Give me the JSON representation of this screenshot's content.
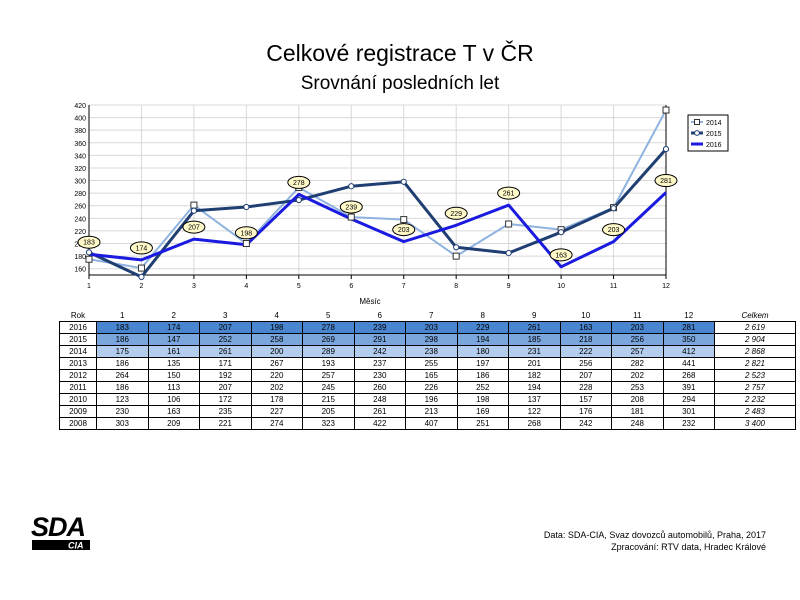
{
  "chart_data": {
    "type": "line",
    "title": "Celkové registrace T v ČR",
    "subtitle": "Srovnání posledních let",
    "xlabel": "Měsíc",
    "x": [
      1,
      2,
      3,
      4,
      5,
      6,
      7,
      8,
      9,
      10,
      11,
      12
    ],
    "ylim": [
      150,
      420
    ],
    "yticks": [
      160,
      180,
      200,
      220,
      240,
      260,
      280,
      300,
      320,
      340,
      360,
      380,
      400,
      420
    ],
    "grid": true,
    "legend_position": "top-right",
    "series": [
      {
        "name": "2014",
        "values": [
          175,
          161,
          261,
          200,
          289,
          242,
          238,
          180,
          231,
          222,
          257,
          412
        ],
        "color": "#8fb3e0",
        "marker": "square"
      },
      {
        "name": "2015",
        "values": [
          186,
          147,
          252,
          258,
          269,
          291,
          298,
          194,
          185,
          218,
          256,
          350
        ],
        "color": "#1f3e72",
        "marker": "circle"
      },
      {
        "name": "2016",
        "values": [
          183,
          174,
          207,
          198,
          278,
          239,
          203,
          229,
          261,
          163,
          203,
          281
        ],
        "color": "#1a1ae0",
        "marker": "label"
      }
    ]
  },
  "table": {
    "header_rok": "Rok",
    "months": [
      "1",
      "2",
      "3",
      "4",
      "5",
      "6",
      "7",
      "8",
      "9",
      "10",
      "11",
      "12"
    ],
    "header_total": "Celkem",
    "rows": [
      {
        "year": "2016",
        "values": [
          "183",
          "174",
          "207",
          "198",
          "278",
          "239",
          "203",
          "229",
          "261",
          "163",
          "203",
          "281"
        ],
        "total": "2 619",
        "bg": "#4a86cf"
      },
      {
        "year": "2015",
        "values": [
          "186",
          "147",
          "252",
          "258",
          "269",
          "291",
          "298",
          "194",
          "185",
          "218",
          "256",
          "350"
        ],
        "total": "2 904",
        "bg": "#7aa6dd"
      },
      {
        "year": "2014",
        "values": [
          "175",
          "161",
          "261",
          "200",
          "289",
          "242",
          "238",
          "180",
          "231",
          "222",
          "257",
          "412"
        ],
        "total": "2 868",
        "bg": "#b3cdee"
      },
      {
        "year": "2013",
        "values": [
          "186",
          "135",
          "171",
          "267",
          "193",
          "237",
          "255",
          "197",
          "201",
          "256",
          "282",
          "441"
        ],
        "total": "2 821",
        "bg": "#ffffff"
      },
      {
        "year": "2012",
        "values": [
          "264",
          "150",
          "192",
          "220",
          "257",
          "230",
          "165",
          "186",
          "182",
          "207",
          "202",
          "268"
        ],
        "total": "2 523",
        "bg": "#ffffff"
      },
      {
        "year": "2011",
        "values": [
          "186",
          "113",
          "207",
          "202",
          "245",
          "260",
          "226",
          "252",
          "194",
          "228",
          "253",
          "391"
        ],
        "total": "2 757",
        "bg": "#ffffff"
      },
      {
        "year": "2010",
        "values": [
          "123",
          "106",
          "172",
          "178",
          "215",
          "248",
          "196",
          "198",
          "137",
          "157",
          "208",
          "294"
        ],
        "total": "2 232",
        "bg": "#ffffff"
      },
      {
        "year": "2009",
        "values": [
          "230",
          "163",
          "235",
          "227",
          "205",
          "261",
          "213",
          "169",
          "122",
          "176",
          "181",
          "301"
        ],
        "total": "2 483",
        "bg": "#ffffff"
      },
      {
        "year": "2008",
        "values": [
          "303",
          "209",
          "221",
          "274",
          "323",
          "422",
          "407",
          "251",
          "268",
          "242",
          "248",
          "232"
        ],
        "total": "3 400",
        "bg": "#ffffff"
      }
    ]
  },
  "logo": {
    "top": "SDA",
    "bottom": "CIA"
  },
  "source": {
    "line1": "Data: SDA-CIA, Svaz dovozců automobilů, Praha, 2017",
    "line2": "Zpracování: RTV data, Hradec Králové"
  }
}
